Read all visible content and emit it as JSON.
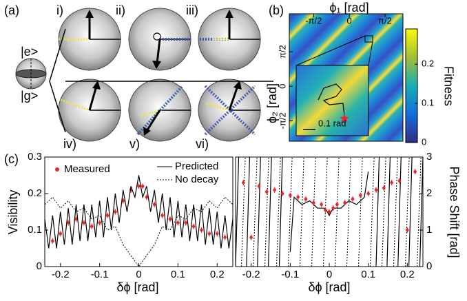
{
  "panel_a": {
    "label": "(a)",
    "states": [
      "|e>",
      "|g>"
    ],
    "subpanels": [
      "i)",
      "ii)",
      "iii)",
      "iv)",
      "v)",
      "vi)"
    ]
  },
  "chart_data": [
    {
      "type": "heatmap",
      "panel_label": "(b)",
      "xlabel": "ϕ₁ [rad]",
      "ylabel": "ϕ₂ [rad]",
      "xlim": [
        -2.64,
        2.36
      ],
      "xticks": [
        {
          "value": -1.5708,
          "label": "-π/2"
        },
        0,
        {
          "value": 1.5708,
          "label": "π/2"
        }
      ],
      "ylim": [
        -2.5,
        3.3
      ],
      "yticks": [
        {
          "value": -1.5708,
          "label": "-π/2"
        },
        0,
        {
          "value": 1.5708,
          "label": "π/2"
        }
      ],
      "colorbar_label": "Fitness",
      "clim": [
        0,
        0.29
      ],
      "cticks": [
        0,
        0.1,
        0.2
      ],
      "inset_scale_label": "0.1 rad"
    },
    {
      "type": "line",
      "panel_label": "(c)",
      "xlabel": "δϕ [rad]",
      "ylabel": "Visibility",
      "xlim": [
        -0.24,
        0.24
      ],
      "xticks": [
        -0.2,
        -0.1,
        0,
        0.1,
        0.2
      ],
      "ylim": [
        0,
        0.3
      ],
      "yticks": [
        0,
        0.1,
        0.2,
        0.3
      ],
      "series": [
        {
          "name": "Measured",
          "type": "scatter",
          "color": "#e8262b",
          "x": [
            -0.22,
            -0.2,
            -0.18,
            -0.16,
            -0.14,
            -0.12,
            -0.1,
            -0.08,
            -0.06,
            -0.04,
            -0.02,
            0,
            0.01,
            0.02,
            0.04,
            0.06,
            0.08,
            0.1,
            0.12,
            0.14,
            0.16,
            0.18,
            0.2,
            0.22
          ],
          "values": [
            0.07,
            0.09,
            0.12,
            0.13,
            0.12,
            0.11,
            0.12,
            0.14,
            0.15,
            0.18,
            0.21,
            0.22,
            0.22,
            0.19,
            0.17,
            0.14,
            0.13,
            0.12,
            0.12,
            0.11,
            0.1,
            0.09,
            0.09,
            0.08
          ]
        },
        {
          "name": "Predicted",
          "type": "line",
          "color": "#000000",
          "dash": "solid",
          "x": [
            -0.24,
            -0.23,
            -0.22,
            -0.21,
            -0.2,
            -0.19,
            -0.18,
            -0.17,
            -0.16,
            -0.15,
            -0.14,
            -0.13,
            -0.12,
            -0.11,
            -0.1,
            -0.09,
            -0.08,
            -0.07,
            -0.06,
            -0.05,
            -0.04,
            -0.03,
            -0.02,
            -0.01,
            0,
            0.01,
            0.02,
            0.03,
            0.04,
            0.05,
            0.06,
            0.07,
            0.08,
            0.09,
            0.1,
            0.11,
            0.12,
            0.13,
            0.14,
            0.15,
            0.16,
            0.17,
            0.18,
            0.19,
            0.2,
            0.21,
            0.22,
            0.23,
            0.24
          ],
          "values": [
            0.13,
            0.05,
            0.14,
            0.05,
            0.15,
            0.06,
            0.16,
            0.06,
            0.17,
            0.07,
            0.17,
            0.07,
            0.17,
            0.08,
            0.18,
            0.08,
            0.19,
            0.1,
            0.2,
            0.12,
            0.21,
            0.15,
            0.22,
            0.19,
            0.25,
            0.19,
            0.22,
            0.15,
            0.21,
            0.12,
            0.2,
            0.1,
            0.19,
            0.08,
            0.18,
            0.08,
            0.17,
            0.07,
            0.17,
            0.07,
            0.17,
            0.06,
            0.16,
            0.06,
            0.15,
            0.05,
            0.14,
            0.05,
            0.13
          ]
        },
        {
          "name": "No decay",
          "type": "line",
          "color": "#000000",
          "dash": "dotted",
          "x": [
            -0.24,
            -0.22,
            -0.2,
            -0.18,
            -0.16,
            -0.14,
            -0.12,
            -0.1,
            -0.08,
            -0.06,
            -0.04,
            -0.02,
            0,
            0.02,
            0.04,
            0.06,
            0.08,
            0.1,
            0.12,
            0.14,
            0.16,
            0.18,
            0.2,
            0.22,
            0.24
          ],
          "values": [
            0.17,
            0.19,
            0.16,
            0.18,
            0.15,
            0.16,
            0.13,
            0.14,
            0.1,
            0.11,
            0.06,
            0.03,
            0,
            0.03,
            0.06,
            0.11,
            0.1,
            0.14,
            0.13,
            0.16,
            0.15,
            0.18,
            0.16,
            0.19,
            0.17
          ]
        }
      ]
    },
    {
      "type": "line",
      "xlabel": "δϕ [rad]",
      "y2label": "Phase Shift [rad]",
      "xlim": [
        -0.24,
        0.24
      ],
      "xticks": [
        -0.2,
        -0.1,
        0,
        0.1,
        0.2
      ],
      "y2lim": [
        0,
        3
      ],
      "y2ticks": [
        0,
        1,
        2,
        3
      ],
      "series": [
        {
          "type": "line",
          "axis": "y2",
          "color": "#000000",
          "dash": "dotted",
          "x": [
            -0.225,
            -0.215,
            -0.21,
            -0.195,
            -0.185,
            -0.18,
            -0.165,
            -0.155,
            -0.15,
            -0.135,
            -0.125,
            -0.12,
            -0.105,
            -0.095,
            -0.09,
            -0.075,
            -0.065,
            -0.06,
            -0.045,
            -0.035,
            -0.03,
            -0.015,
            -0.005,
            0,
            0.015,
            0.025,
            0.03,
            0.045,
            0.055,
            0.06,
            0.075,
            0.085,
            0.09,
            0.105,
            0.115,
            0.12,
            0.135,
            0.145,
            0.15,
            0.165,
            0.175,
            0.18,
            0.195,
            0.205,
            0.21,
            0.225,
            0.235
          ],
          "values": [
            0,
            3,
            null,
            0,
            3,
            null,
            0,
            3,
            null,
            0,
            3,
            null,
            0,
            3,
            null,
            0,
            3,
            null,
            0,
            3,
            null,
            0,
            3,
            null,
            0,
            3,
            null,
            0,
            3,
            null,
            0,
            3,
            null,
            0,
            3,
            null,
            0,
            3,
            null,
            0,
            3,
            null,
            0,
            3,
            null,
            0,
            3
          ]
        },
        {
          "type": "line",
          "axis": "y2",
          "color": "#000000",
          "dash": "solid",
          "x": [
            -0.24,
            -0.232,
            -0.228,
            -0.212,
            -0.204,
            -0.2,
            -0.184,
            -0.176,
            -0.172,
            -0.156,
            -0.148,
            -0.144,
            -0.128,
            -0.12,
            -0.116,
            -0.1,
            -0.09,
            -0.07,
            -0.05,
            -0.03,
            -0.01,
            0,
            0.01,
            0.03,
            0.05,
            0.07,
            0.09,
            0.1,
            0.116,
            0.12,
            0.128,
            0.144,
            0.148,
            0.156,
            0.172,
            0.176,
            0.184,
            0.2,
            0.204,
            0.212,
            0.228,
            0.232,
            0.24
          ],
          "values": [
            0,
            3,
            null,
            0,
            3,
            null,
            0,
            3,
            null,
            0,
            3,
            null,
            0,
            3,
            null,
            0.4,
            1.9,
            1.7,
            1.8,
            1.6,
            1.6,
            1.4,
            1.6,
            1.6,
            1.8,
            1.7,
            1.9,
            2.6,
            null,
            0,
            3,
            null,
            0,
            3,
            null,
            0,
            3,
            null,
            0,
            3,
            null,
            0,
            3
          ]
        },
        {
          "type": "scatter",
          "axis": "y2",
          "color": "#e8262b",
          "x": [
            -0.22,
            -0.2,
            -0.18,
            -0.16,
            -0.14,
            -0.12,
            -0.1,
            -0.08,
            -0.06,
            -0.04,
            -0.02,
            -0.01,
            0,
            0.01,
            0.02,
            0.04,
            0.06,
            0.08,
            0.1,
            0.12,
            0.14,
            0.16,
            0.18,
            0.2,
            0.22
          ],
          "values": [
            2.3,
            0.8,
            2.2,
            2.05,
            2.1,
            2.0,
            1.95,
            1.9,
            1.85,
            1.75,
            1.7,
            1.55,
            1.5,
            1.6,
            1.7,
            1.75,
            1.85,
            1.95,
            2.0,
            2.1,
            2.15,
            2.3,
            2.35,
            1.0,
            2.6
          ]
        }
      ]
    }
  ]
}
